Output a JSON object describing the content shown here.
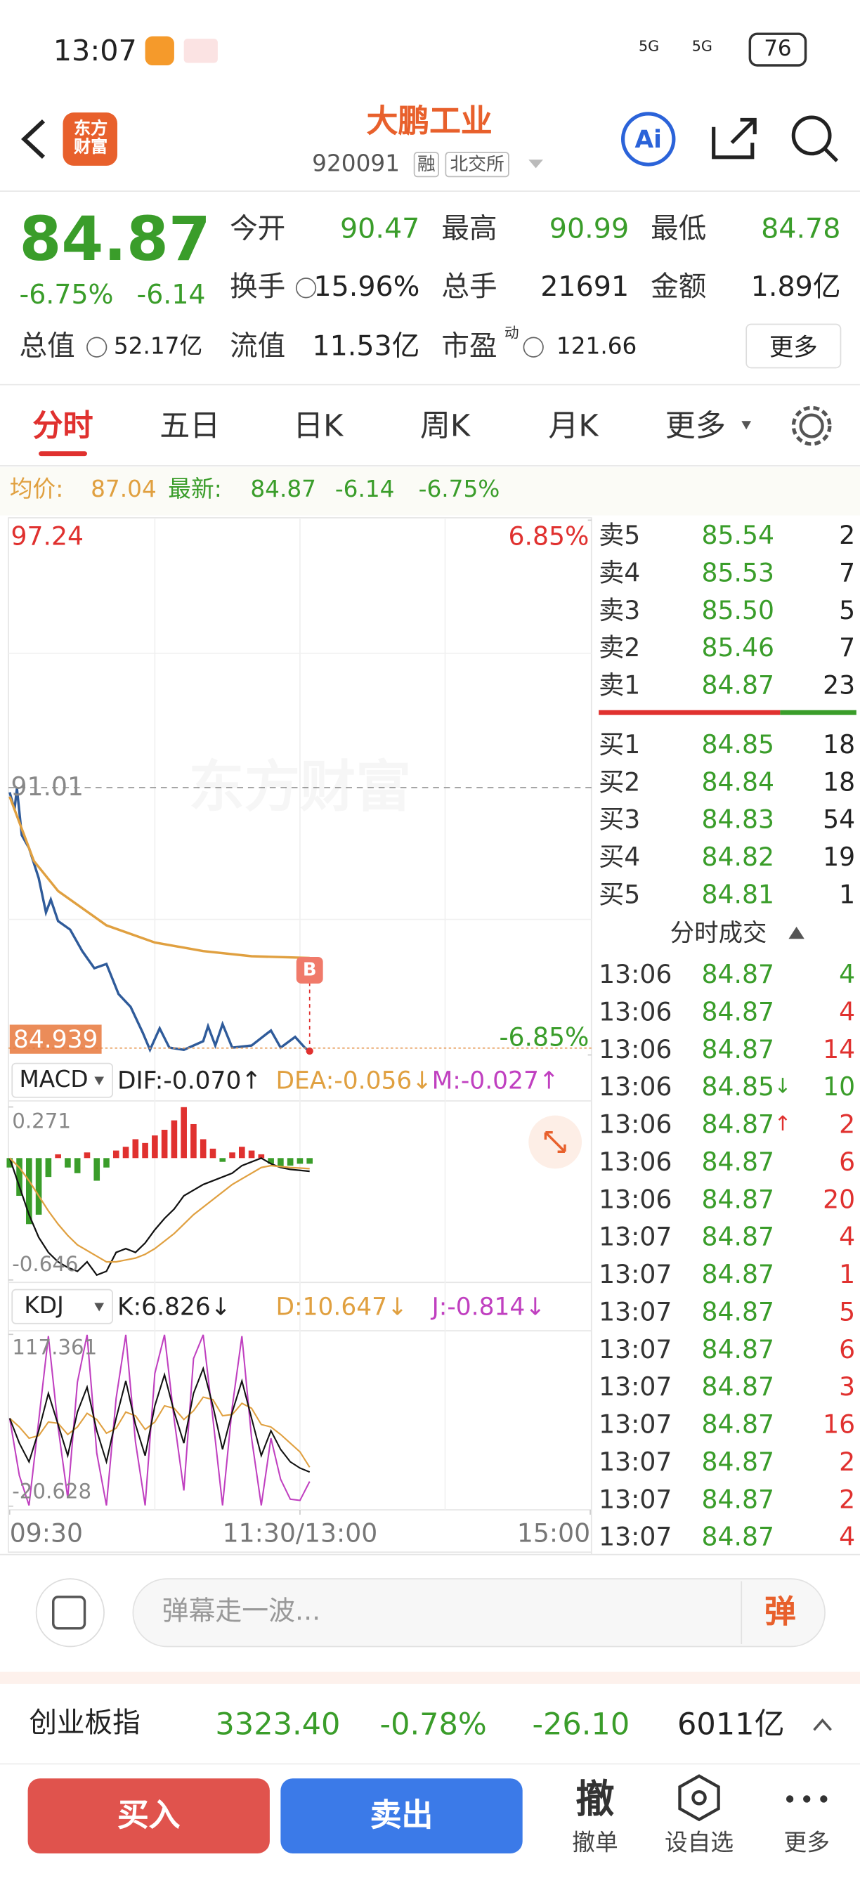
{
  "status_bar": {
    "time": "13:07",
    "network": [
      "5G",
      "5G"
    ],
    "battery": "76"
  },
  "header": {
    "logo": "东方财富",
    "title": "大鹏工业",
    "code": "920091",
    "tags": [
      "融",
      "北交所"
    ],
    "ai": "Ai"
  },
  "quote": {
    "price": "84.87",
    "change_pct": "-6.75%",
    "change": "-6.14",
    "fields": [
      {
        "label": "今开",
        "value": "90.47"
      },
      {
        "label": "最高",
        "value": "90.99"
      },
      {
        "label": "最低",
        "value": "84.78"
      },
      {
        "label": "换手",
        "value": "15.96%"
      },
      {
        "label": "总手",
        "value": "21691"
      },
      {
        "label": "金额",
        "value": "1.89亿"
      },
      {
        "label": "总值",
        "value": "52.17亿"
      },
      {
        "label": "流值",
        "value": "11.53亿"
      },
      {
        "label": "市盈",
        "sup": "动",
        "value": "121.66"
      }
    ],
    "more": "更多"
  },
  "tabs": [
    "分时",
    "五日",
    "日K",
    "周K",
    "月K",
    "更多"
  ],
  "info_line": {
    "avg_label": "均价:",
    "avg": "87.04",
    "latest_label": "最新:",
    "latest": "84.87",
    "change": "-6.14",
    "change_pct": "-6.75%"
  },
  "chart_data": {
    "type": "line",
    "watermark": "东方财富",
    "xlim": [
      0,
      240
    ],
    "xticks": [
      {
        "value": 0,
        "label": "09:30"
      },
      {
        "value": 120,
        "label": "11:30/13:00"
      },
      {
        "value": 240,
        "label": "15:00"
      }
    ],
    "ylim": [
      84.78,
      97.24
    ],
    "yticks": [
      97.24,
      91.01
    ],
    "y2lim": [
      -6.85,
      6.85
    ],
    "y2ticks": [
      {
        "value": 6.85,
        "label": "6.85%"
      },
      {
        "value": -6.85,
        "label": "-6.85%"
      }
    ],
    "cursor_value": 84.939,
    "trade_marker": "B",
    "series": [
      {
        "color": "#2f5b9a",
        "x": [
          0,
          2,
          3,
          5,
          8,
          12,
          15,
          17,
          20,
          25,
          30,
          35,
          40,
          45,
          50,
          55,
          58,
          62,
          66,
          72,
          80,
          82,
          85,
          88,
          92,
          100,
          108,
          112,
          118,
          122,
          124
        ],
        "values": [
          90.9,
          90.5,
          90.99,
          89.9,
          89.6,
          88.9,
          88.1,
          88.4,
          87.9,
          87.7,
          87.2,
          86.8,
          86.9,
          86.2,
          85.9,
          85.3,
          84.9,
          85.4,
          84.95,
          84.9,
          85.1,
          85.45,
          85.0,
          85.5,
          84.95,
          85.0,
          85.35,
          84.95,
          85.2,
          84.95,
          84.87
        ]
      },
      {
        "color": "#e0a040",
        "x": [
          0,
          10,
          20,
          40,
          60,
          80,
          100,
          124
        ],
        "values": [
          90.8,
          89.3,
          88.6,
          87.8,
          87.4,
          87.2,
          87.08,
          87.04
        ]
      }
    ],
    "macd": {
      "title": "MACD",
      "dif_label": "DIF:-0.070↑",
      "dea_label": "DEA:-0.056↓",
      "m_label": "M:-0.027↑",
      "ylim": [
        -0.646,
        0.271
      ],
      "yticks": [
        0.271,
        -0.646
      ],
      "up_color": "#e0312f",
      "down_color": "#3a9d2a",
      "dif_color": "#111111",
      "dea_color": "#e0a040",
      "x": [
        0,
        4,
        8,
        12,
        16,
        20,
        24,
        28,
        32,
        36,
        40,
        44,
        48,
        52,
        56,
        60,
        64,
        68,
        72,
        76,
        80,
        84,
        88,
        92,
        96,
        100,
        104,
        108,
        112,
        116,
        120,
        124
      ],
      "hist": [
        -0.05,
        -0.2,
        -0.35,
        -0.3,
        -0.1,
        0.02,
        -0.05,
        -0.08,
        0.03,
        -0.12,
        -0.05,
        0.04,
        0.06,
        0.1,
        0.08,
        0.12,
        0.15,
        0.2,
        0.27,
        0.18,
        0.1,
        0.05,
        -0.02,
        0.03,
        0.06,
        0.04,
        0.02,
        -0.03,
        -0.05,
        -0.04,
        -0.03,
        -0.03
      ],
      "dif": [
        0,
        -0.15,
        -0.3,
        -0.42,
        -0.5,
        -0.55,
        -0.58,
        -0.6,
        -0.55,
        -0.62,
        -0.6,
        -0.5,
        -0.48,
        -0.5,
        -0.45,
        -0.38,
        -0.32,
        -0.27,
        -0.2,
        -0.17,
        -0.14,
        -0.12,
        -0.1,
        -0.08,
        -0.04,
        -0.02,
        0,
        -0.03,
        -0.05,
        -0.06,
        -0.065,
        -0.07
      ],
      "dea": [
        0,
        -0.05,
        -0.12,
        -0.2,
        -0.28,
        -0.35,
        -0.41,
        -0.46,
        -0.49,
        -0.52,
        -0.55,
        -0.55,
        -0.54,
        -0.53,
        -0.51,
        -0.48,
        -0.44,
        -0.4,
        -0.35,
        -0.3,
        -0.26,
        -0.22,
        -0.18,
        -0.14,
        -0.11,
        -0.08,
        -0.05,
        -0.04,
        -0.045,
        -0.05,
        -0.053,
        -0.056
      ]
    },
    "kdj": {
      "title": "KDJ",
      "k_label": "K:6.826↓",
      "d_label": "D:10.647↓",
      "j_label": "J:-0.814↓",
      "ylim": [
        -20.628,
        117.361
      ],
      "yticks": [
        117.361,
        -20.628
      ],
      "k_color": "#111111",
      "d_color": "#e0a040",
      "j_color": "#c040c0",
      "x": [
        0,
        4,
        8,
        12,
        16,
        20,
        24,
        28,
        32,
        36,
        40,
        44,
        48,
        52,
        56,
        60,
        64,
        68,
        72,
        76,
        80,
        84,
        88,
        92,
        96,
        100,
        104,
        108,
        112,
        116,
        120,
        124
      ],
      "k": [
        50,
        30,
        15,
        40,
        70,
        45,
        20,
        55,
        75,
        40,
        15,
        50,
        80,
        45,
        20,
        60,
        85,
        55,
        30,
        70,
        90,
        60,
        25,
        55,
        80,
        50,
        20,
        40,
        25,
        15,
        10,
        6.826
      ],
      "d": [
        50,
        43,
        34,
        36,
        47,
        46,
        37,
        43,
        54,
        49,
        38,
        42,
        55,
        52,
        41,
        47,
        60,
        58,
        49,
        56,
        67,
        65,
        52,
        53,
        62,
        58,
        45,
        43,
        37,
        30,
        23,
        10.647
      ],
      "j": [
        50,
        4,
        -20,
        48,
        116,
        43,
        -14,
        79,
        117,
        22,
        -20,
        66,
        117,
        31,
        -20,
        86,
        117,
        49,
        -8,
        98,
        117,
        50,
        -20,
        59,
        116,
        34,
        -20,
        34,
        1,
        -15,
        -16,
        -0.814
      ]
    }
  },
  "order_book": {
    "asks": [
      {
        "label": "卖5",
        "price": "85.54",
        "volume": "2"
      },
      {
        "label": "卖4",
        "price": "85.53",
        "volume": "7"
      },
      {
        "label": "卖3",
        "price": "85.50",
        "volume": "5"
      },
      {
        "label": "卖2",
        "price": "85.46",
        "volume": "7"
      },
      {
        "label": "卖1",
        "price": "84.87",
        "volume": "23"
      }
    ],
    "bids": [
      {
        "label": "买1",
        "price": "84.85",
        "volume": "18"
      },
      {
        "label": "买2",
        "price": "84.84",
        "volume": "18"
      },
      {
        "label": "买3",
        "price": "84.83",
        "volume": "54"
      },
      {
        "label": "买4",
        "price": "84.82",
        "volume": "19"
      },
      {
        "label": "买5",
        "price": "84.81",
        "volume": "1"
      }
    ]
  },
  "trades": {
    "title": "分时成交",
    "rows": [
      {
        "time": "13:06",
        "price": "84.87",
        "volume": "4",
        "color": "#3a9d2a"
      },
      {
        "time": "13:06",
        "price": "84.87",
        "volume": "4",
        "color": "#e0312f"
      },
      {
        "time": "13:06",
        "price": "84.87",
        "volume": "14",
        "color": "#e0312f"
      },
      {
        "time": "13:06",
        "price": "84.85",
        "arrow": "↓",
        "volume": "10",
        "color": "#3a9d2a"
      },
      {
        "time": "13:06",
        "price": "84.87",
        "arrow": "↑",
        "volume": "2",
        "color": "#e0312f"
      },
      {
        "time": "13:06",
        "price": "84.87",
        "volume": "6",
        "color": "#e0312f"
      },
      {
        "time": "13:06",
        "price": "84.87",
        "volume": "20",
        "color": "#e0312f"
      },
      {
        "time": "13:07",
        "price": "84.87",
        "volume": "4",
        "color": "#e0312f"
      },
      {
        "time": "13:07",
        "price": "84.87",
        "volume": "1",
        "color": "#e0312f"
      },
      {
        "time": "13:07",
        "price": "84.87",
        "volume": "5",
        "color": "#e0312f"
      },
      {
        "time": "13:07",
        "price": "84.87",
        "volume": "6",
        "color": "#e0312f"
      },
      {
        "time": "13:07",
        "price": "84.87",
        "volume": "3",
        "color": "#e0312f"
      },
      {
        "time": "13:07",
        "price": "84.87",
        "volume": "16",
        "color": "#e0312f"
      },
      {
        "time": "13:07",
        "price": "84.87",
        "volume": "2",
        "color": "#e0312f"
      },
      {
        "time": "13:07",
        "price": "84.87",
        "volume": "2",
        "color": "#e0312f"
      },
      {
        "time": "13:07",
        "price": "84.87",
        "volume": "4",
        "color": "#e0312f"
      }
    ]
  },
  "comment_bar": {
    "placeholder": "弹幕走一波...",
    "button": "弹"
  },
  "index_bar": {
    "name": "创业板指",
    "value": "3323.40",
    "change_pct": "-0.78%",
    "change": "-26.10",
    "amount": "6011亿"
  },
  "bottom_bar": {
    "buy": "买入",
    "sell": "卖出",
    "cancel_icon": "撤",
    "actions": [
      "撤单",
      "设自选",
      "更多"
    ]
  }
}
